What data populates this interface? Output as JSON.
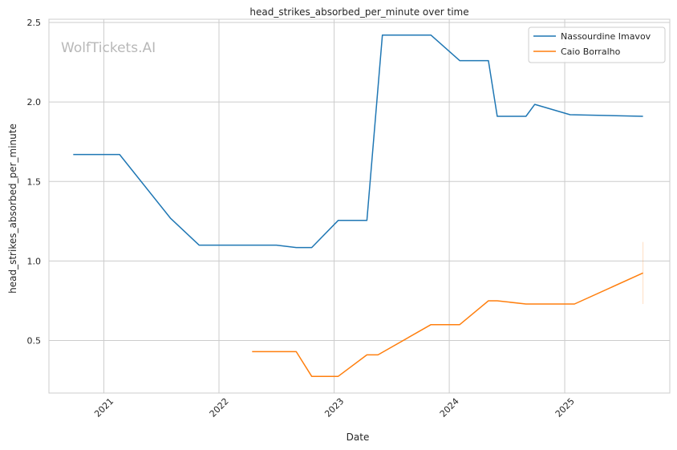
{
  "chart_data": {
    "type": "line",
    "title": "head_strikes_absorbed_per_minute over time",
    "xlabel": "Date",
    "ylabel": "head_strikes_absorbed_per_minute",
    "watermark": "WolfTickets.AI",
    "x_ticks": [
      "2021",
      "2022",
      "2023",
      "2024",
      "2025"
    ],
    "y_ticks": [
      "0.5",
      "1.0",
      "1.5",
      "2.0",
      "2.5"
    ],
    "xlim": [
      "2020-07-11",
      "2025-11-30"
    ],
    "ylim": [
      0.17,
      2.52
    ],
    "grid": true,
    "legend_position": "top-right",
    "series": [
      {
        "name": "Nassourdine Imavov",
        "color": "#1f77b4",
        "points": [
          {
            "x": "2020-09-26",
            "y": 1.67
          },
          {
            "x": "2021-02-20",
            "y": 1.67
          },
          {
            "x": "2021-07-31",
            "y": 1.27
          },
          {
            "x": "2021-10-30",
            "y": 1.1
          },
          {
            "x": "2022-07-02",
            "y": 1.1
          },
          {
            "x": "2022-09-03",
            "y": 1.085
          },
          {
            "x": "2022-10-22",
            "y": 1.085
          },
          {
            "x": "2023-01-14",
            "y": 1.255
          },
          {
            "x": "2023-04-15",
            "y": 1.255
          },
          {
            "x": "2023-06-03",
            "y": 2.42
          },
          {
            "x": "2023-11-04",
            "y": 2.42
          },
          {
            "x": "2024-02-03",
            "y": 2.26
          },
          {
            "x": "2024-05-04",
            "y": 2.26
          },
          {
            "x": "2024-06-01",
            "y": 1.91
          },
          {
            "x": "2024-08-31",
            "y": 1.91
          },
          {
            "x": "2024-09-28",
            "y": 1.985
          },
          {
            "x": "2025-01-18",
            "y": 1.92
          },
          {
            "x": "2025-09-06",
            "y": 1.91
          }
        ]
      },
      {
        "name": "Caio Borralho",
        "color": "#ff7f0e",
        "points": [
          {
            "x": "2022-04-16",
            "y": 0.43
          },
          {
            "x": "2022-09-03",
            "y": 0.43
          },
          {
            "x": "2022-10-22",
            "y": 0.275
          },
          {
            "x": "2023-01-14",
            "y": 0.275
          },
          {
            "x": "2023-04-15",
            "y": 0.41
          },
          {
            "x": "2023-05-20",
            "y": 0.41
          },
          {
            "x": "2023-11-04",
            "y": 0.6
          },
          {
            "x": "2024-02-03",
            "y": 0.6
          },
          {
            "x": "2024-05-04",
            "y": 0.75
          },
          {
            "x": "2024-06-01",
            "y": 0.75
          },
          {
            "x": "2024-08-31",
            "y": 0.73
          },
          {
            "x": "2025-02-01",
            "y": 0.73
          },
          {
            "x": "2025-09-06",
            "y": 0.925
          }
        ],
        "error_bar": {
          "x": "2025-09-06",
          "low": 0.73,
          "high": 1.12
        }
      }
    ]
  }
}
